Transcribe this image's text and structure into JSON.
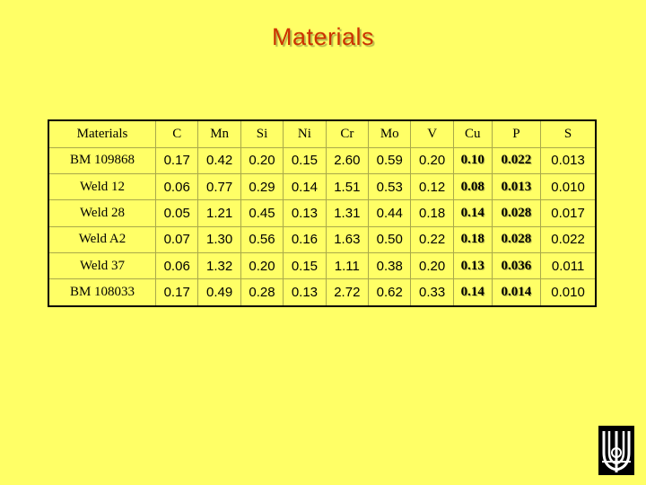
{
  "title": "Materials",
  "table": {
    "headers": [
      "Materials",
      "C",
      "Mn",
      "Si",
      "Ni",
      "Cr",
      "Mo",
      "V",
      "Cu",
      "P",
      "S"
    ],
    "rows": [
      {
        "name": "BM 109868",
        "values": [
          "0.17",
          "0.42",
          "0.20",
          "0.15",
          "2.60",
          "0.59",
          "0.20",
          "0.10",
          "0.022",
          "0.013"
        ]
      },
      {
        "name": "Weld 12",
        "values": [
          "0.06",
          "0.77",
          "0.29",
          "0.14",
          "1.51",
          "0.53",
          "0.12",
          "0.08",
          "0.013",
          "0.010"
        ]
      },
      {
        "name": "Weld 28",
        "values": [
          "0.05",
          "1.21",
          "0.45",
          "0.13",
          "1.31",
          "0.44",
          "0.18",
          "0.14",
          "0.028",
          "0.017"
        ]
      },
      {
        "name": "Weld A2",
        "values": [
          "0.07",
          "1.30",
          "0.56",
          "0.16",
          "1.63",
          "0.50",
          "0.22",
          "0.18",
          "0.028",
          "0.022"
        ]
      },
      {
        "name": "Weld 37",
        "values": [
          "0.06",
          "1.32",
          "0.20",
          "0.15",
          "1.11",
          "0.38",
          "0.20",
          "0.13",
          "0.036",
          "0.011"
        ]
      },
      {
        "name": "BM 108033",
        "values": [
          "0.17",
          "0.49",
          "0.28",
          "0.13",
          "2.72",
          "0.62",
          "0.33",
          "0.14",
          "0.014",
          "0.010"
        ]
      }
    ]
  },
  "colors": {
    "background": "#ffff66",
    "title": "#cc3300",
    "highlight": "#800080"
  },
  "logo": {
    "icon": "organization-logo-icon"
  }
}
